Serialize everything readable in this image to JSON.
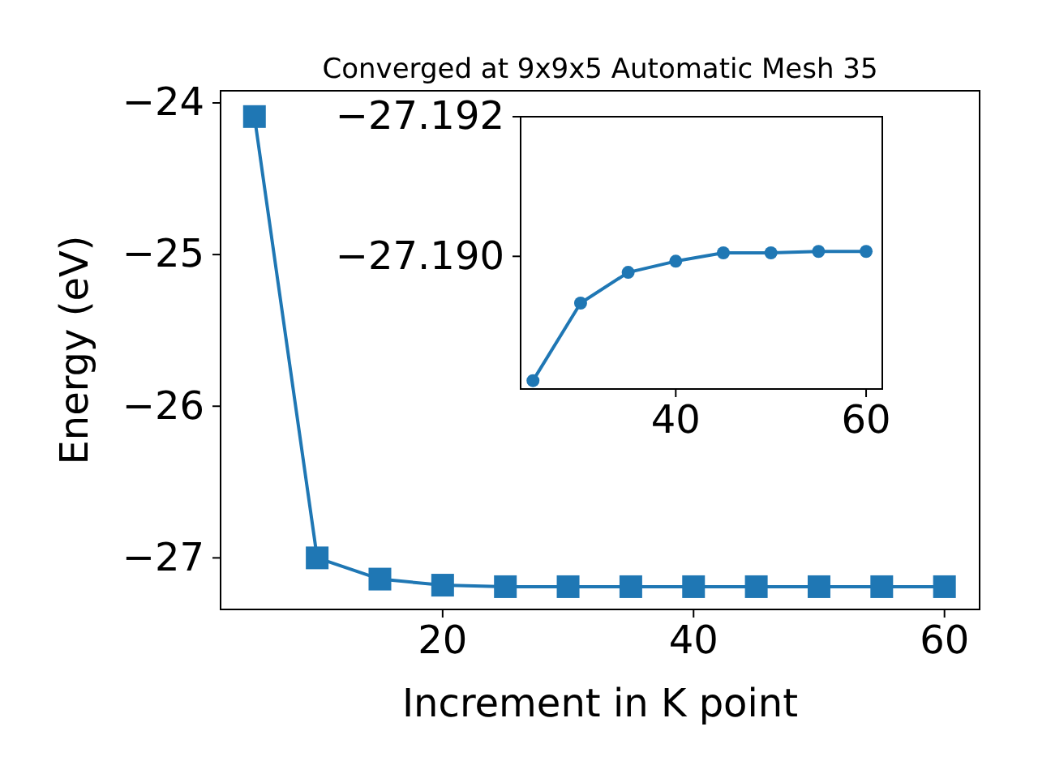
{
  "chart_data": [
    {
      "type": "line",
      "title": "Converged at 9x9x5 Automatic Mesh 35",
      "xlabel": "Increment in K point",
      "ylabel": "Energy (eV)",
      "marker": "square",
      "line_style": "solid",
      "x": [
        5,
        10,
        15,
        20,
        25,
        30,
        35,
        40,
        45,
        50,
        55,
        60
      ],
      "series": [
        {
          "color": "#1f77b4",
          "values": [
            -24.09,
            -27.0,
            -27.14,
            -27.18,
            -27.19,
            -27.19,
            -27.19,
            -27.19,
            -27.19,
            -27.19,
            -27.19,
            -27.19
          ]
        }
      ],
      "xlim": [
        2.3,
        62.8
      ],
      "ylim": [
        -27.34,
        -23.92
      ],
      "xticks": [
        20,
        40,
        60
      ],
      "yticks": [
        {
          "value": -27,
          "label": "−27"
        },
        {
          "value": -26,
          "label": "−26"
        },
        {
          "value": -25,
          "label": "−25"
        },
        {
          "value": -24,
          "label": "−24"
        }
      ]
    },
    {
      "type": "line",
      "marker": "circle",
      "line_style": "solid",
      "x": [
        25,
        30,
        35,
        40,
        45,
        50,
        55,
        60
      ],
      "series": [
        {
          "color": "#1f77b4",
          "values": [
            -27.18822,
            -27.18933,
            -27.18977,
            -27.18993,
            -27.19005,
            -27.19005,
            -27.19007,
            -27.19007
          ]
        }
      ],
      "xlim": [
        23.7,
        61.7
      ],
      "ylim": [
        -27.1881,
        -27.192
      ],
      "xticks": [
        40,
        60
      ],
      "yticks": [
        {
          "value": -27.192,
          "label": "−27.192"
        },
        {
          "value": -27.19,
          "label": "−27.190"
        }
      ]
    }
  ]
}
